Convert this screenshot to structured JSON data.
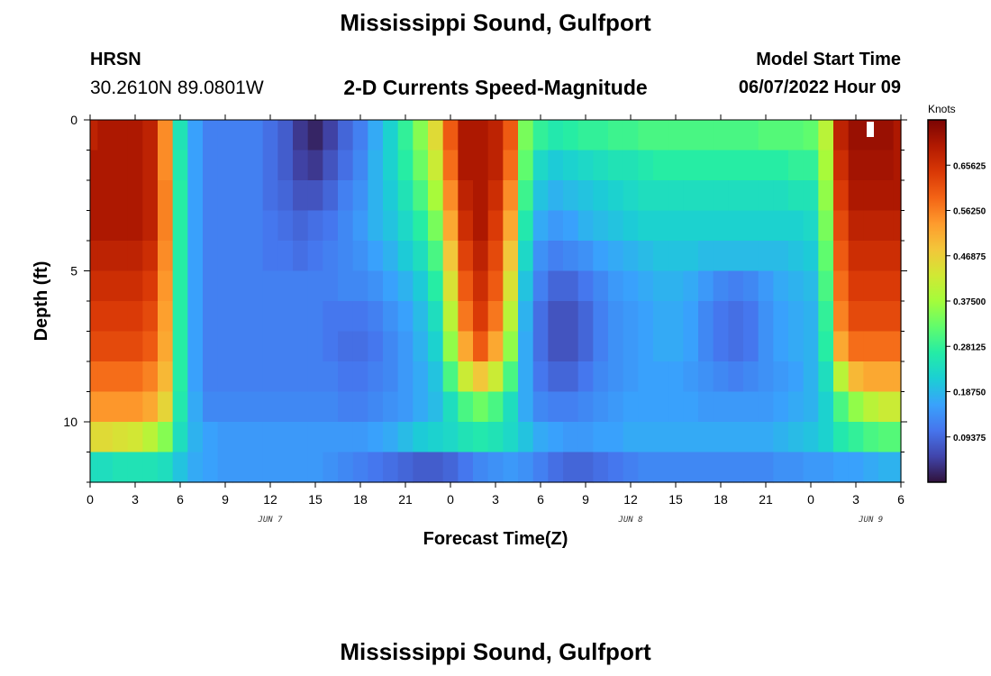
{
  "page": {
    "title": "Mississippi Sound, Gulfport",
    "bottom_title": "Mississippi Sound, Gulfport",
    "station_code": "HRSN",
    "station_coords": "30.2610N  89.0801W",
    "subtitle": "2-D Currents Speed-Magnitude",
    "start_label": "Model Start Time",
    "start_value": "06/07/2022 Hour 09"
  },
  "colors": {
    "colormap": [
      "#30123b",
      "#4145ab",
      "#4675ed",
      "#39a2fc",
      "#1bcfd4",
      "#24eca6",
      "#61fc6c",
      "#a4fc3b",
      "#d1e834",
      "#f3c63a",
      "#fe9b2d",
      "#f36315",
      "#d93806",
      "#b11901",
      "#7a0403"
    ]
  },
  "chart_data": {
    "type": "heatmap",
    "xlabel": "Forecast Time(Z)",
    "ylabel": "Depth (ft)",
    "colorbar_label": "Knots",
    "x_ticks": [
      "0",
      "3",
      "6",
      "9",
      "12",
      "15",
      "18",
      "21",
      "0",
      "3",
      "6",
      "9",
      "12",
      "15",
      "18",
      "21",
      "0",
      "3",
      "6"
    ],
    "y_ticks": [
      "0",
      "5",
      "10"
    ],
    "date_labels": [
      "JUN 7",
      "JUN 8",
      "JUN 9"
    ],
    "colorbar_ticks": [
      "0.65625",
      "0.56250",
      "0.46875",
      "0.37500",
      "0.28125",
      "0.18750",
      "0.09375"
    ],
    "x_range_hours": [
      0,
      54
    ],
    "depth_range_ft": [
      0,
      12
    ],
    "value_range": [
      0,
      0.75
    ],
    "x_hours": [
      0,
      1,
      2,
      3,
      4,
      5,
      6,
      7,
      8,
      9,
      10,
      11,
      12,
      13,
      14,
      15,
      16,
      17,
      18,
      19,
      20,
      21,
      22,
      23,
      24,
      25,
      26,
      27,
      28,
      29,
      30,
      31,
      32,
      33,
      34,
      35,
      36,
      37,
      38,
      39,
      40,
      41,
      42,
      43,
      44,
      45,
      46,
      47,
      48,
      49,
      50,
      51,
      52,
      53,
      54
    ],
    "depth_layers_ft": [
      0.5,
      1.5,
      2.5,
      3.5,
      4.5,
      5.5,
      6.5,
      7.5,
      8.5,
      9.5,
      10.5,
      11.5
    ],
    "values": [
      [
        0.68,
        0.7,
        0.7,
        0.7,
        0.68,
        0.55,
        0.25,
        0.16,
        0.12,
        0.12,
        0.12,
        0.12,
        0.1,
        0.08,
        0.04,
        0.02,
        0.05,
        0.09,
        0.12,
        0.17,
        0.22,
        0.28,
        0.35,
        0.45,
        0.6,
        0.7,
        0.7,
        0.68,
        0.6,
        0.34,
        0.28,
        0.26,
        0.27,
        0.28,
        0.28,
        0.29,
        0.29,
        0.3,
        0.3,
        0.3,
        0.3,
        0.3,
        0.3,
        0.3,
        0.3,
        0.31,
        0.31,
        0.31,
        0.32,
        0.4,
        0.68,
        0.72,
        0.72,
        0.72,
        0.7
      ],
      [
        0.7,
        0.7,
        0.7,
        0.7,
        0.68,
        0.55,
        0.26,
        0.16,
        0.12,
        0.12,
        0.12,
        0.12,
        0.1,
        0.08,
        0.05,
        0.04,
        0.07,
        0.1,
        0.13,
        0.18,
        0.22,
        0.27,
        0.33,
        0.42,
        0.58,
        0.7,
        0.7,
        0.68,
        0.58,
        0.32,
        0.23,
        0.21,
        0.22,
        0.23,
        0.24,
        0.25,
        0.25,
        0.26,
        0.27,
        0.27,
        0.27,
        0.27,
        0.27,
        0.27,
        0.27,
        0.27,
        0.27,
        0.28,
        0.28,
        0.38,
        0.66,
        0.71,
        0.71,
        0.71,
        0.7
      ],
      [
        0.7,
        0.7,
        0.7,
        0.7,
        0.68,
        0.56,
        0.27,
        0.16,
        0.12,
        0.12,
        0.12,
        0.12,
        0.1,
        0.09,
        0.07,
        0.07,
        0.09,
        0.12,
        0.14,
        0.18,
        0.21,
        0.25,
        0.3,
        0.38,
        0.55,
        0.68,
        0.7,
        0.66,
        0.55,
        0.29,
        0.2,
        0.18,
        0.19,
        0.2,
        0.21,
        0.22,
        0.23,
        0.24,
        0.24,
        0.24,
        0.24,
        0.24,
        0.24,
        0.24,
        0.24,
        0.24,
        0.24,
        0.25,
        0.25,
        0.36,
        0.64,
        0.7,
        0.7,
        0.7,
        0.7
      ],
      [
        0.7,
        0.7,
        0.7,
        0.7,
        0.68,
        0.56,
        0.27,
        0.16,
        0.12,
        0.12,
        0.12,
        0.12,
        0.11,
        0.1,
        0.09,
        0.1,
        0.11,
        0.13,
        0.15,
        0.18,
        0.2,
        0.23,
        0.27,
        0.34,
        0.52,
        0.66,
        0.7,
        0.64,
        0.52,
        0.26,
        0.17,
        0.15,
        0.16,
        0.18,
        0.19,
        0.2,
        0.21,
        0.22,
        0.22,
        0.22,
        0.22,
        0.22,
        0.22,
        0.22,
        0.22,
        0.22,
        0.22,
        0.22,
        0.23,
        0.34,
        0.62,
        0.68,
        0.68,
        0.68,
        0.68
      ],
      [
        0.68,
        0.68,
        0.68,
        0.68,
        0.66,
        0.55,
        0.27,
        0.16,
        0.12,
        0.12,
        0.12,
        0.12,
        0.11,
        0.11,
        0.1,
        0.11,
        0.12,
        0.13,
        0.14,
        0.16,
        0.18,
        0.21,
        0.24,
        0.3,
        0.48,
        0.63,
        0.68,
        0.62,
        0.48,
        0.23,
        0.14,
        0.12,
        0.13,
        0.14,
        0.16,
        0.17,
        0.18,
        0.19,
        0.2,
        0.2,
        0.2,
        0.19,
        0.19,
        0.19,
        0.19,
        0.19,
        0.19,
        0.2,
        0.21,
        0.32,
        0.6,
        0.66,
        0.66,
        0.66,
        0.66
      ],
      [
        0.66,
        0.66,
        0.66,
        0.66,
        0.64,
        0.54,
        0.27,
        0.16,
        0.12,
        0.12,
        0.12,
        0.12,
        0.12,
        0.12,
        0.12,
        0.12,
        0.12,
        0.13,
        0.13,
        0.14,
        0.16,
        0.18,
        0.21,
        0.27,
        0.44,
        0.6,
        0.66,
        0.6,
        0.44,
        0.2,
        0.12,
        0.09,
        0.09,
        0.11,
        0.13,
        0.15,
        0.16,
        0.17,
        0.18,
        0.18,
        0.17,
        0.15,
        0.13,
        0.12,
        0.13,
        0.15,
        0.17,
        0.18,
        0.19,
        0.3,
        0.58,
        0.64,
        0.64,
        0.64,
        0.64
      ],
      [
        0.64,
        0.64,
        0.64,
        0.64,
        0.62,
        0.53,
        0.27,
        0.16,
        0.12,
        0.12,
        0.12,
        0.12,
        0.12,
        0.12,
        0.12,
        0.12,
        0.11,
        0.11,
        0.11,
        0.12,
        0.14,
        0.16,
        0.19,
        0.24,
        0.4,
        0.57,
        0.64,
        0.57,
        0.4,
        0.18,
        0.1,
        0.07,
        0.07,
        0.09,
        0.12,
        0.14,
        0.15,
        0.16,
        0.17,
        0.17,
        0.16,
        0.13,
        0.11,
        0.1,
        0.11,
        0.14,
        0.16,
        0.17,
        0.18,
        0.28,
        0.56,
        0.62,
        0.62,
        0.62,
        0.62
      ],
      [
        0.62,
        0.62,
        0.62,
        0.62,
        0.6,
        0.52,
        0.27,
        0.16,
        0.12,
        0.12,
        0.12,
        0.12,
        0.12,
        0.12,
        0.12,
        0.12,
        0.11,
        0.1,
        0.1,
        0.11,
        0.13,
        0.15,
        0.18,
        0.22,
        0.36,
        0.52,
        0.6,
        0.52,
        0.36,
        0.17,
        0.1,
        0.07,
        0.07,
        0.09,
        0.12,
        0.14,
        0.15,
        0.16,
        0.17,
        0.17,
        0.16,
        0.13,
        0.11,
        0.1,
        0.11,
        0.14,
        0.16,
        0.17,
        0.18,
        0.27,
        0.52,
        0.58,
        0.58,
        0.58,
        0.58
      ],
      [
        0.58,
        0.58,
        0.58,
        0.58,
        0.56,
        0.5,
        0.27,
        0.16,
        0.12,
        0.12,
        0.12,
        0.12,
        0.12,
        0.12,
        0.12,
        0.12,
        0.12,
        0.11,
        0.11,
        0.12,
        0.13,
        0.15,
        0.17,
        0.2,
        0.3,
        0.42,
        0.48,
        0.42,
        0.3,
        0.17,
        0.11,
        0.09,
        0.09,
        0.11,
        0.13,
        0.14,
        0.15,
        0.16,
        0.16,
        0.16,
        0.15,
        0.14,
        0.13,
        0.12,
        0.13,
        0.14,
        0.15,
        0.16,
        0.18,
        0.24,
        0.4,
        0.5,
        0.52,
        0.52,
        0.52
      ],
      [
        0.54,
        0.54,
        0.54,
        0.54,
        0.52,
        0.46,
        0.26,
        0.17,
        0.13,
        0.13,
        0.13,
        0.13,
        0.13,
        0.13,
        0.13,
        0.13,
        0.13,
        0.12,
        0.12,
        0.13,
        0.14,
        0.15,
        0.17,
        0.19,
        0.24,
        0.3,
        0.33,
        0.3,
        0.24,
        0.17,
        0.13,
        0.12,
        0.12,
        0.13,
        0.14,
        0.15,
        0.16,
        0.16,
        0.16,
        0.16,
        0.16,
        0.15,
        0.15,
        0.15,
        0.15,
        0.15,
        0.16,
        0.17,
        0.18,
        0.22,
        0.3,
        0.36,
        0.4,
        0.42,
        0.42
      ],
      [
        0.45,
        0.45,
        0.44,
        0.43,
        0.4,
        0.35,
        0.24,
        0.18,
        0.16,
        0.15,
        0.15,
        0.15,
        0.15,
        0.15,
        0.15,
        0.15,
        0.15,
        0.15,
        0.15,
        0.16,
        0.17,
        0.19,
        0.21,
        0.22,
        0.23,
        0.25,
        0.26,
        0.25,
        0.23,
        0.2,
        0.17,
        0.16,
        0.15,
        0.15,
        0.16,
        0.16,
        0.17,
        0.17,
        0.17,
        0.17,
        0.17,
        0.17,
        0.17,
        0.17,
        0.17,
        0.17,
        0.18,
        0.19,
        0.2,
        0.22,
        0.26,
        0.28,
        0.3,
        0.31,
        0.31
      ],
      [
        0.24,
        0.24,
        0.25,
        0.25,
        0.25,
        0.24,
        0.2,
        0.17,
        0.16,
        0.15,
        0.15,
        0.15,
        0.15,
        0.15,
        0.15,
        0.15,
        0.14,
        0.13,
        0.12,
        0.11,
        0.1,
        0.09,
        0.08,
        0.08,
        0.09,
        0.11,
        0.13,
        0.14,
        0.15,
        0.14,
        0.12,
        0.1,
        0.09,
        0.09,
        0.1,
        0.11,
        0.12,
        0.13,
        0.13,
        0.13,
        0.13,
        0.13,
        0.13,
        0.13,
        0.13,
        0.13,
        0.14,
        0.14,
        0.15,
        0.15,
        0.16,
        0.16,
        0.17,
        0.18,
        0.18
      ]
    ]
  }
}
